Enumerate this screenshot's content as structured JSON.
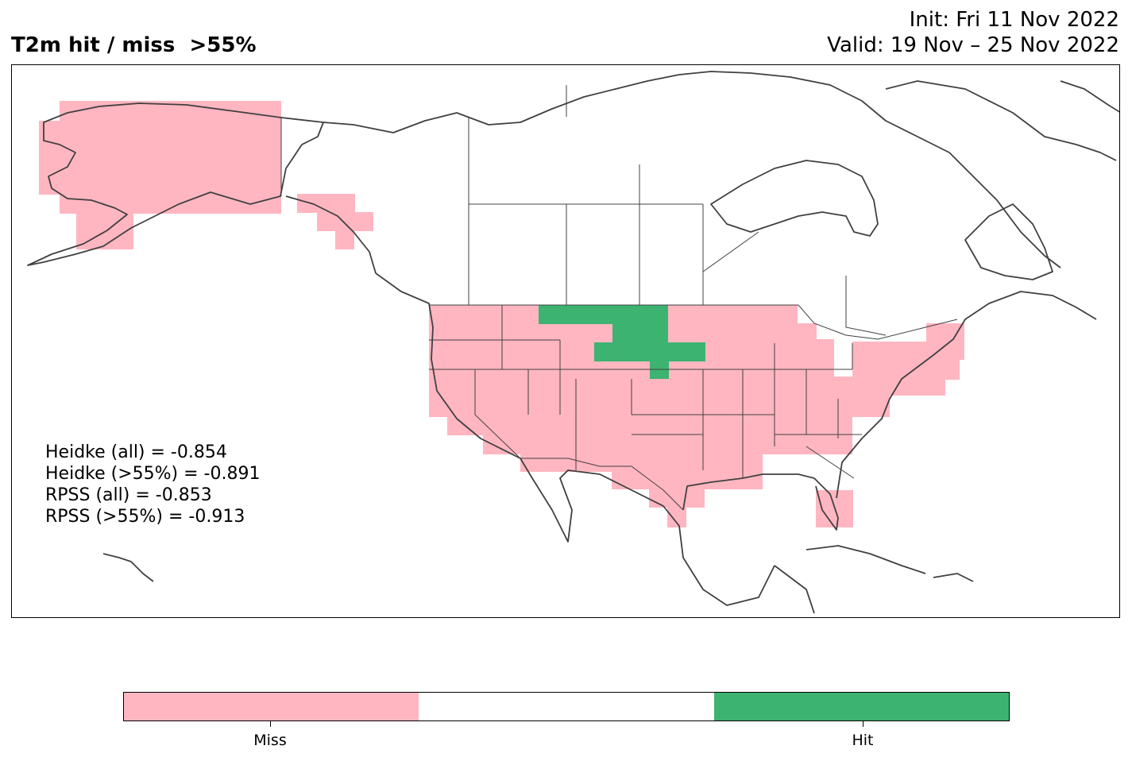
{
  "header": {
    "title": "T2m hit / miss  >55%",
    "init": "Init: Fri 11 Nov 2022",
    "valid": "Valid: 19 Nov – 25 Nov 2022"
  },
  "stats": [
    "Heidke (all) = -0.854",
    "Heidke (>55%) = -0.891",
    "RPSS (all) = -0.853",
    "RPSS (>55%) = -0.913"
  ],
  "legend": {
    "categories": [
      {
        "label": "Miss",
        "color": "#ffb6c1"
      },
      {
        "label": "",
        "color": "#ffffff"
      },
      {
        "label": "Hit",
        "color": "#3cb371"
      }
    ]
  },
  "colors": {
    "miss": "#ffb6c1",
    "hit": "#3cb371",
    "coastline": "#404040",
    "border": "#404040"
  }
}
